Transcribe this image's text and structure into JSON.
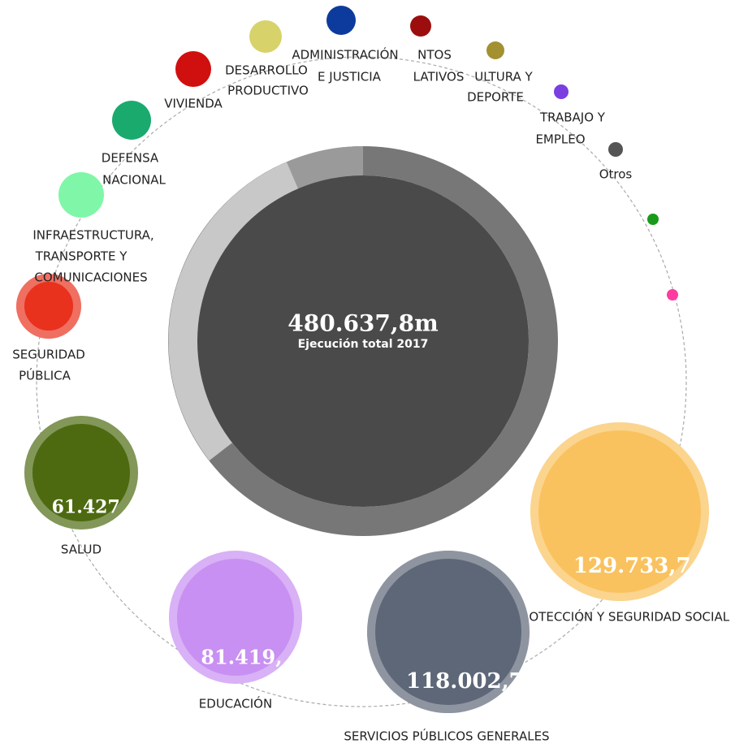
{
  "center": {
    "value": "480.637,8m",
    "caption": "Ejecución total 2017"
  },
  "nodes": [
    {
      "lines": [
        "PROTECCIÓN Y SEGURIDAD SOCIAL"
      ],
      "value": "129.733,7",
      "color": "#f9c25e"
    },
    {
      "lines": [
        "SERVICIOS PÚBLICOS GENERALES"
      ],
      "value": "118.002,7",
      "color": "#5d6778"
    },
    {
      "lines": [
        "EDUCACIÓN"
      ],
      "value": "81.419,",
      "color": "#c890f2"
    },
    {
      "lines": [
        "SALUD"
      ],
      "value": "61.427",
      "color": "#4d6a10"
    },
    {
      "lines": [
        "SEGURIDAD",
        "PÚBLICA"
      ],
      "color": "#e8321e"
    },
    {
      "lines": [
        "INFRAESTRUCTURA,",
        "TRANSPORTE Y",
        "COMUNICACIONES"
      ],
      "color": "#80f7a8"
    },
    {
      "lines": [
        "DEFENSA",
        "NACIONAL"
      ],
      "color": "#1aaa6e"
    },
    {
      "lines": [
        "VIVIENDA"
      ],
      "color": "#d0100e"
    },
    {
      "lines": [
        "DESARROLLO",
        "PRODUCTIVO"
      ],
      "color": "#d8d26a"
    },
    {
      "lines": [
        "ADMINISTRACIÓN",
        "E JUSTICIA"
      ],
      "color": "#0d3b9d"
    },
    {
      "lines": [
        "NTOS",
        "LATIVOS"
      ],
      "color": "#9c0e0e"
    },
    {
      "lines": [
        "ULTURA Y",
        "DEPORTE"
      ],
      "color": "#a39030"
    },
    {
      "lines": [
        "TRABAJO Y",
        "EMPLEO"
      ],
      "color": "#7b3ee0"
    },
    {
      "lines": [
        "Otros"
      ],
      "color": "#555555"
    },
    {
      "lines": [],
      "color": "#1a9a1a"
    },
    {
      "lines": [],
      "color": "#ff3aa0"
    }
  ]
}
